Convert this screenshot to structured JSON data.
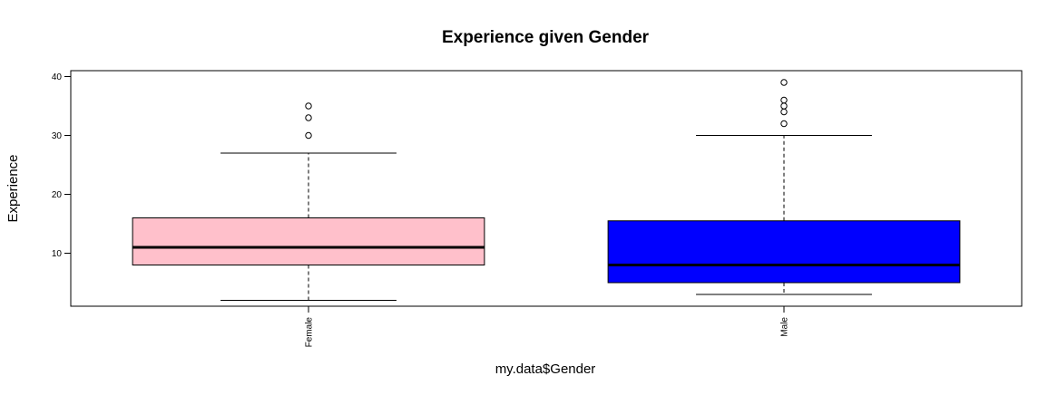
{
  "chart_data": {
    "type": "boxplot",
    "title": "Experience given Gender",
    "xlabel": "my.data$Gender",
    "ylabel": "Experience",
    "ylim": [
      1,
      41
    ],
    "yticks": [
      "10",
      "20",
      "30",
      "40"
    ],
    "grid": false,
    "legend": "none",
    "categories": [
      "Female",
      "Male"
    ],
    "boxes": [
      {
        "category": "Female",
        "color": "#ffc0cb",
        "whisker_low": 2,
        "q1": 8,
        "median": 11,
        "q3": 16,
        "whisker_high": 27,
        "outliers": [
          30,
          33,
          35
        ]
      },
      {
        "category": "Male",
        "color": "#0000ff",
        "whisker_low": 3,
        "q1": 5,
        "median": 8,
        "q3": 15.5,
        "whisker_high": 30,
        "outliers": [
          32,
          34,
          35,
          36,
          39
        ]
      }
    ]
  }
}
